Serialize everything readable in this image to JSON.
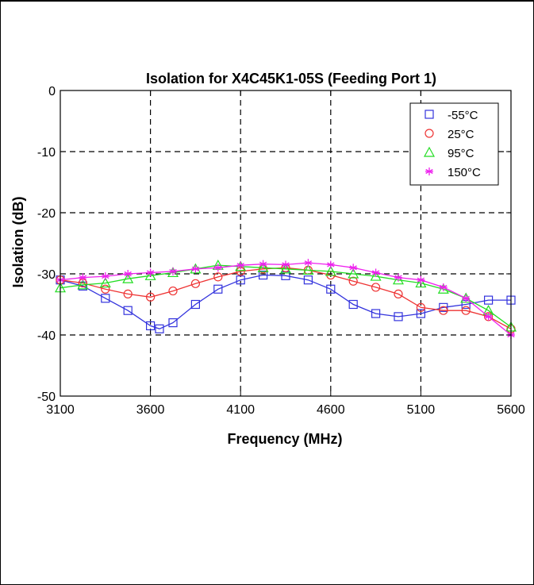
{
  "chart_data": {
    "type": "line",
    "title": "Isolation for X4C45K1-05S (Feeding Port 1)",
    "xlabel": "Frequency (MHz)",
    "ylabel": "Isolation (dB)",
    "xlim": [
      3100,
      5600
    ],
    "ylim": [
      -50,
      0
    ],
    "xticks": [
      3100,
      3600,
      4100,
      4600,
      5100,
      5600
    ],
    "yticks": [
      0,
      -10,
      -20,
      -30,
      -40,
      -50
    ],
    "grid": true,
    "legend_position": "top-right",
    "series": [
      {
        "name": "-55°C",
        "color": "#3333dd",
        "marker": "square",
        "x": [
          3100,
          3225,
          3350,
          3475,
          3600,
          3650,
          3725,
          3850,
          3975,
          4100,
          4225,
          4350,
          4475,
          4600,
          4725,
          4850,
          4975,
          5100,
          5225,
          5350,
          5475,
          5600
        ],
        "y": [
          -31.0,
          -32.0,
          -34.0,
          -36.0,
          -38.5,
          -39.0,
          -38.0,
          -35.0,
          -32.5,
          -31.0,
          -30.2,
          -30.3,
          -31.0,
          -32.5,
          -35.0,
          -36.5,
          -37.0,
          -36.5,
          -35.5,
          -35.0,
          -34.3,
          -34.3
        ]
      },
      {
        "name": "25°C",
        "color": "#ee3333",
        "marker": "circle",
        "x": [
          3100,
          3225,
          3350,
          3475,
          3600,
          3725,
          3850,
          3975,
          4100,
          4225,
          4350,
          4475,
          4600,
          4725,
          4850,
          4975,
          5100,
          5225,
          5350,
          5475,
          5600
        ],
        "y": [
          -31.0,
          -31.5,
          -32.5,
          -33.3,
          -33.8,
          -32.8,
          -31.6,
          -30.5,
          -29.6,
          -29.2,
          -29.0,
          -29.4,
          -30.2,
          -31.2,
          -32.2,
          -33.3,
          -35.5,
          -36.0,
          -36.0,
          -37.0,
          -39.0
        ]
      },
      {
        "name": "95°C",
        "color": "#22dd22",
        "marker": "triangle",
        "x": [
          3100,
          3225,
          3350,
          3475,
          3600,
          3725,
          3850,
          3975,
          4100,
          4225,
          4350,
          4475,
          4600,
          4725,
          4850,
          4975,
          5100,
          5225,
          5350,
          5475,
          5600
        ],
        "y": [
          -32.3,
          -31.8,
          -31.5,
          -30.8,
          -30.3,
          -29.8,
          -29.2,
          -28.6,
          -28.8,
          -29.0,
          -29.2,
          -29.4,
          -29.6,
          -30.0,
          -30.4,
          -31.0,
          -31.5,
          -32.5,
          -34.0,
          -36.0,
          -38.7
        ]
      },
      {
        "name": "150°C",
        "color": "#ee22ee",
        "marker": "star",
        "x": [
          3100,
          3225,
          3350,
          3475,
          3600,
          3725,
          3850,
          3975,
          4100,
          4225,
          4350,
          4475,
          4600,
          4725,
          4850,
          4975,
          5100,
          5225,
          5350,
          5475,
          5600
        ],
        "y": [
          -31.0,
          -30.6,
          -30.4,
          -30.0,
          -29.8,
          -29.6,
          -29.2,
          -29.0,
          -28.6,
          -28.4,
          -28.5,
          -28.2,
          -28.5,
          -29.0,
          -29.8,
          -30.6,
          -31.0,
          -32.2,
          -34.0,
          -37.0,
          -40.0
        ]
      }
    ]
  }
}
